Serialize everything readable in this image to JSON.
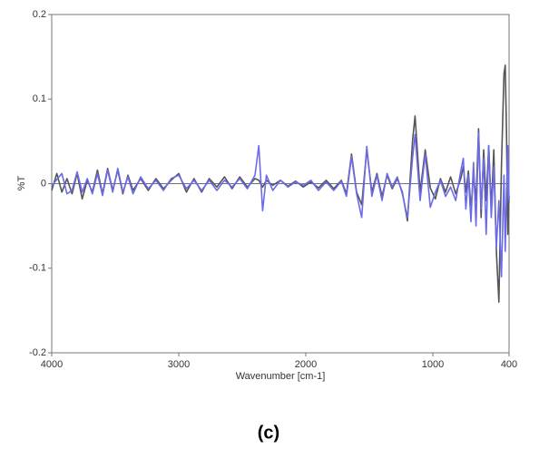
{
  "chart_data": {
    "type": "line",
    "xlabel": "Wavenumber [cm-1]",
    "ylabel": "%T",
    "caption": "(c)",
    "xlim": [
      4000,
      400
    ],
    "xticks": [
      4000,
      3000,
      2000,
      1000,
      400
    ],
    "ylim": [
      -0.2,
      0.2
    ],
    "yticks": [
      0.2,
      0.1,
      0,
      -0.1,
      -0.2
    ],
    "x": [
      4000,
      3960,
      3920,
      3880,
      3840,
      3800,
      3760,
      3720,
      3680,
      3640,
      3600,
      3560,
      3520,
      3480,
      3440,
      3400,
      3360,
      3300,
      3240,
      3180,
      3120,
      3060,
      3000,
      2940,
      2880,
      2820,
      2760,
      2700,
      2640,
      2580,
      2520,
      2460,
      2400,
      2370,
      2340,
      2310,
      2260,
      2200,
      2140,
      2080,
      2020,
      1960,
      1900,
      1840,
      1780,
      1720,
      1680,
      1640,
      1600,
      1560,
      1520,
      1480,
      1440,
      1400,
      1360,
      1320,
      1280,
      1240,
      1200,
      1160,
      1140,
      1100,
      1060,
      1020,
      980,
      940,
      900,
      860,
      820,
      780,
      760,
      740,
      720,
      700,
      680,
      660,
      640,
      620,
      600,
      580,
      560,
      540,
      520,
      500,
      480,
      460,
      440,
      430,
      420,
      410,
      400
    ],
    "series": [
      {
        "color": "#555555",
        "values": [
          -0.008,
          0.012,
          -0.01,
          0.006,
          -0.012,
          0.012,
          -0.018,
          0.004,
          -0.01,
          0.016,
          -0.012,
          0.018,
          -0.008,
          0.016,
          -0.012,
          0.01,
          -0.008,
          0.006,
          -0.008,
          0.006,
          -0.006,
          0.004,
          0.012,
          -0.01,
          0.006,
          -0.01,
          0.006,
          -0.004,
          0.008,
          -0.006,
          0.008,
          -0.004,
          0.006,
          0.004,
          -0.004,
          0.004,
          -0.002,
          0.004,
          -0.003,
          0.003,
          -0.004,
          0.002,
          -0.005,
          0.004,
          -0.006,
          0.004,
          -0.012,
          0.035,
          -0.01,
          -0.025,
          0.04,
          -0.01,
          0.012,
          -0.015,
          0.01,
          -0.006,
          0.006,
          -0.01,
          -0.044,
          0.05,
          0.08,
          -0.01,
          0.04,
          -0.005,
          -0.018,
          0.006,
          -0.01,
          0.008,
          -0.012,
          0.006,
          0.02,
          -0.01,
          0.015,
          -0.03,
          0.01,
          -0.02,
          0.065,
          -0.04,
          0.04,
          -0.02,
          0.045,
          -0.03,
          0.04,
          -0.08,
          -0.14,
          0.02,
          0.13,
          0.14,
          0.06,
          -0.06,
          -0.015
        ]
      },
      {
        "color": "#6b6bea",
        "values": [
          -0.003,
          0.005,
          0.012,
          -0.012,
          -0.008,
          0.014,
          -0.01,
          0.006,
          -0.012,
          0.012,
          -0.014,
          0.016,
          -0.01,
          0.018,
          -0.01,
          0.008,
          -0.012,
          0.008,
          -0.006,
          0.004,
          -0.008,
          0.006,
          0.01,
          -0.006,
          0.004,
          -0.008,
          0.004,
          -0.008,
          0.004,
          -0.004,
          0.006,
          -0.006,
          0.01,
          0.045,
          -0.032,
          0.01,
          -0.008,
          0.004,
          -0.004,
          0.002,
          -0.002,
          0.004,
          -0.008,
          0.002,
          -0.008,
          0.003,
          -0.015,
          0.032,
          -0.012,
          -0.04,
          0.044,
          -0.015,
          0.01,
          -0.02,
          0.012,
          -0.004,
          0.008,
          -0.012,
          -0.04,
          0.03,
          0.058,
          -0.02,
          0.035,
          -0.028,
          -0.01,
          0.004,
          -0.015,
          -0.004,
          -0.02,
          0.015,
          0.03,
          -0.03,
          0.01,
          -0.045,
          0.025,
          -0.05,
          0.06,
          -0.03,
          0.03,
          -0.06,
          0.045,
          -0.04,
          0.02,
          -0.075,
          -0.02,
          -0.11,
          0.01,
          -0.08,
          -0.01,
          0.045,
          -0.02
        ]
      }
    ]
  }
}
